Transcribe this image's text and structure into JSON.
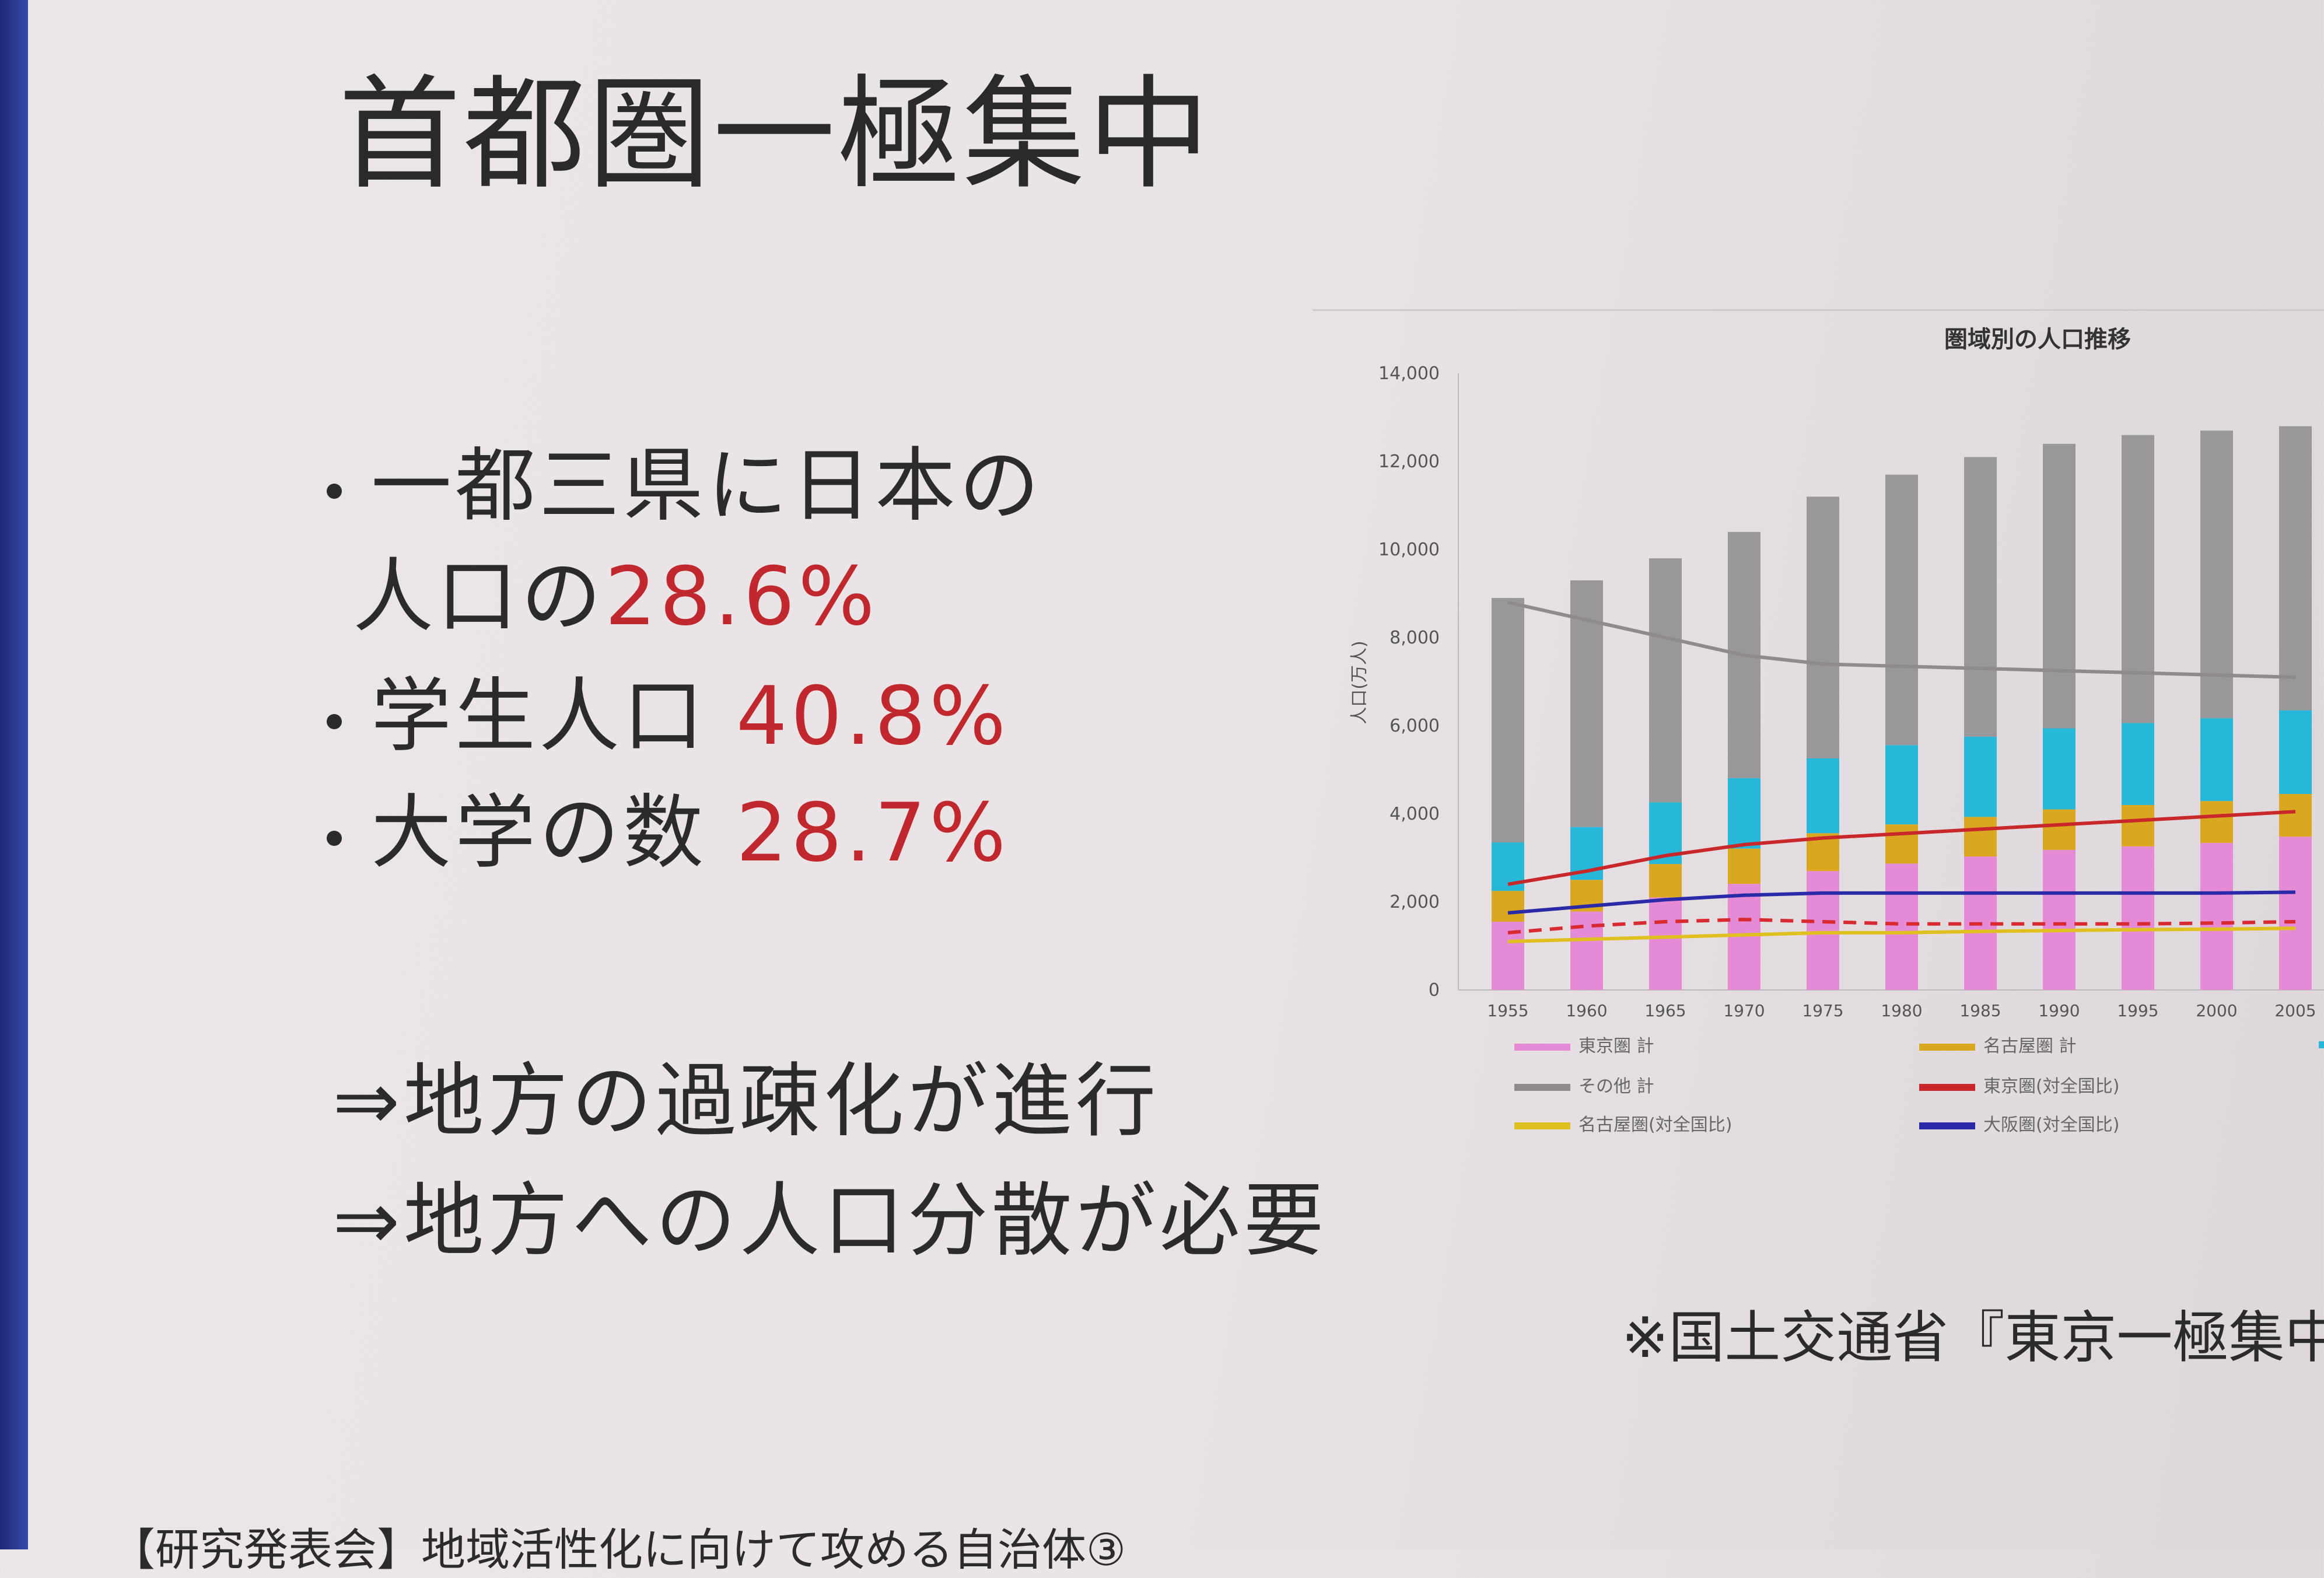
{
  "slide": {
    "title": "首都圏一極集中",
    "bullets": [
      {
        "text": "一都三県に日本の",
        "text2": "人口の",
        "value": "28.6%"
      },
      {
        "text": "学生人口 ",
        "value": "40.8%"
      },
      {
        "text": "大学の数 ",
        "value": "28.7%"
      }
    ],
    "conclusions": [
      "⇒地方の過疎化が進行",
      "⇒地方への人口分散が必要"
    ],
    "source": "※国土交通省『東京一極集中の",
    "footer": "【研究発表会】地域活性化に向けて攻める自治体③"
  },
  "chart_data": {
    "type": "bar",
    "title": "圏域別の人口推移",
    "ylabel": "人口(万人)",
    "ylim": [
      0,
      14000
    ],
    "yticks": [
      "0",
      "2,000",
      "4,000",
      "6,000",
      "8,000",
      "10,000",
      "12,000",
      "14,000"
    ],
    "categories": [
      "1955",
      "1960",
      "1965",
      "1970",
      "1975",
      "1980",
      "1985",
      "1990",
      "1995",
      "2000",
      "2005"
    ],
    "stacked_series": [
      {
        "name": "東京圏 計",
        "color": "#e58bd6",
        "values": [
          1550,
          1780,
          2100,
          2410,
          2700,
          2870,
          3030,
          3180,
          3260,
          3340,
          3480
        ]
      },
      {
        "name": "名古屋圏 計",
        "color": "#d9a820",
        "values": [
          700,
          720,
          760,
          800,
          860,
          890,
          900,
          920,
          940,
          950,
          970
        ]
      },
      {
        "name": "",
        "color": "#27b7d8",
        "values": [
          1100,
          1200,
          1400,
          1600,
          1700,
          1800,
          1820,
          1840,
          1860,
          1880,
          1900
        ]
      },
      {
        "name": "その他 計",
        "color": "#9a979b",
        "values": [
          5550,
          5600,
          5540,
          5590,
          5940,
          6140,
          6350,
          6460,
          6540,
          6530,
          6450
        ]
      }
    ],
    "line_series": [
      {
        "name": "",
        "color": "#8e8a8e",
        "dash": false,
        "values": [
          8800,
          8400,
          8000,
          7600,
          7400,
          7350,
          7300,
          7250,
          7200,
          7150,
          7100
        ]
      },
      {
        "name": "東京圏(対全国比)",
        "color": "#c8282a",
        "dash": false,
        "values": [
          2400,
          2700,
          3050,
          3300,
          3450,
          3550,
          3650,
          3750,
          3850,
          3950,
          4050
        ]
      },
      {
        "name": "大阪圏(対全国比)",
        "color": "#2a2aa8",
        "dash": false,
        "values": [
          1750,
          1900,
          2050,
          2150,
          2200,
          2200,
          2200,
          2200,
          2200,
          2200,
          2220
        ]
      },
      {
        "name": "",
        "color": "#d82a30",
        "dash": true,
        "values": [
          1300,
          1450,
          1550,
          1600,
          1550,
          1500,
          1500,
          1500,
          1500,
          1520,
          1550
        ]
      },
      {
        "name": "名古屋圏(対全国比)",
        "color": "#e0c020",
        "dash": false,
        "values": [
          1100,
          1150,
          1200,
          1250,
          1300,
          1300,
          1330,
          1350,
          1370,
          1380,
          1400
        ]
      }
    ],
    "legend": [
      {
        "label": "東京圏 計",
        "color": "#e58bd6"
      },
      {
        "label": "名古屋圏 計",
        "color": "#d9a820"
      },
      {
        "label": "その他 計",
        "color": "#8e8a8e"
      },
      {
        "label": "東京圏(対全国比)",
        "color": "#c8282a"
      },
      {
        "label": "名古屋圏(対全国比)",
        "color": "#e0c020"
      },
      {
        "label": "大阪圏(対全国比)",
        "color": "#2a2aa8"
      }
    ]
  }
}
